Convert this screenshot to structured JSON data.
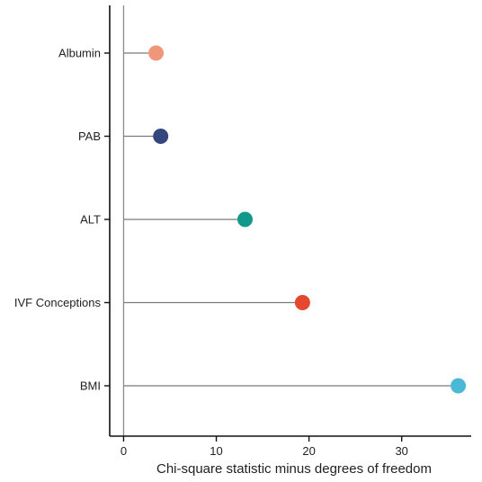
{
  "chart_data": {
    "type": "lollipop",
    "orientation": "horizontal",
    "xlabel": "Chi-square statistic minus degrees of freedom",
    "xlim": [
      -1.5,
      37.5
    ],
    "xticks": [
      0,
      10,
      20,
      30
    ],
    "grid": false,
    "reference_line_x": 0,
    "categories": [
      "Albumin",
      "PAB",
      "ALT",
      "IVF Conceptions",
      "BMI"
    ],
    "values": [
      3.5,
      4.0,
      13.1,
      19.3,
      36.1
    ],
    "colors": [
      "#F0977A",
      "#34467E",
      "#12998C",
      "#E5472F",
      "#4BB9D6"
    ]
  }
}
